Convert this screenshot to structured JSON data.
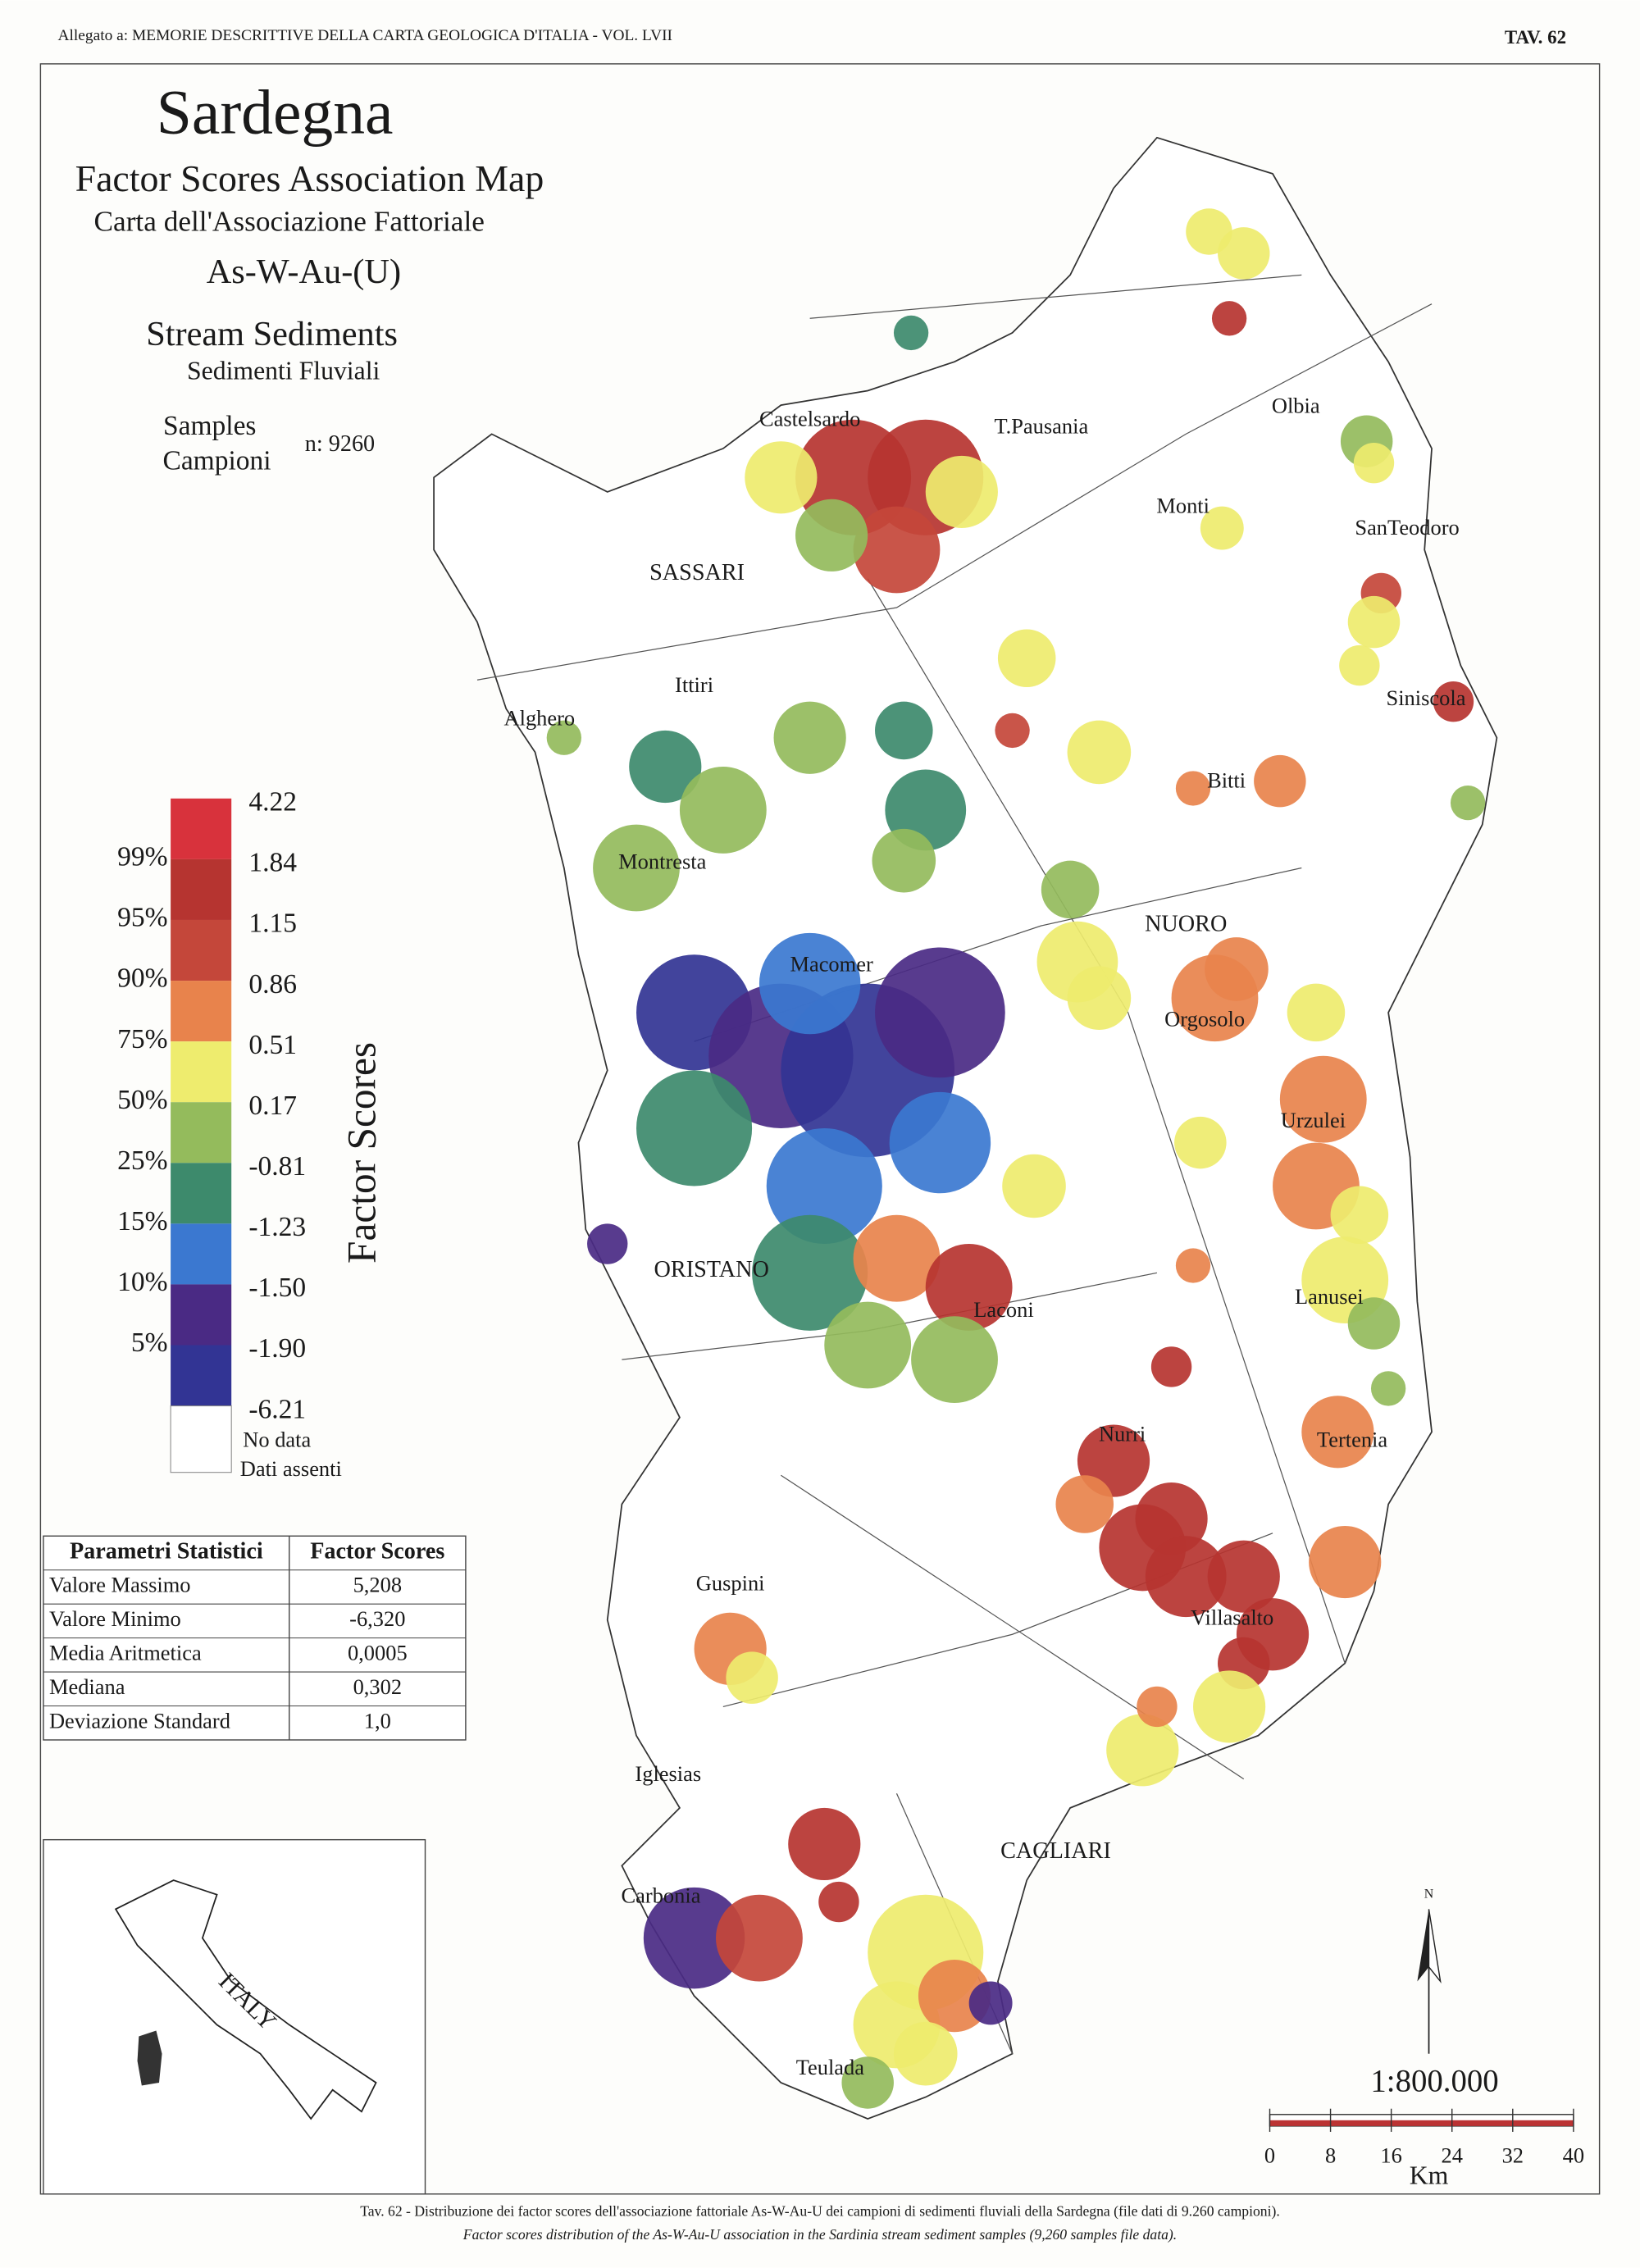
{
  "header": {
    "left": "Allegato a: MEMORIE DESCRITTIVE DELLA CARTA GEOLOGICA D'ITALIA - VOL. LVII",
    "right": "TAV. 62"
  },
  "title": {
    "main": "Sardegna",
    "subtitle_en": "Factor Scores Association Map",
    "subtitle_it": "Carta dell'Associazione Fattoriale",
    "association": "As-W-Au-(U)",
    "media_en": "Stream Sediments",
    "media_it": "Sedimenti Fluviali",
    "samples_en": "Samples",
    "samples_it": "Campioni",
    "samples_n": "n: 9260"
  },
  "legend": {
    "title": "Factor Scores",
    "colors": [
      "#d8323c",
      "#b63430",
      "#c4473a",
      "#e8834c",
      "#eeec6e",
      "#94bb5c",
      "#3d8a6c",
      "#3b78d0",
      "#4a2a84",
      "#323494"
    ],
    "values": [
      "4.22",
      "1.84",
      "1.15",
      "0.86",
      "0.51",
      "0.17",
      "-0.81",
      "-1.23",
      "-1.50",
      "-1.90",
      "-6.21"
    ],
    "percentiles": [
      "99%",
      "95%",
      "90%",
      "75%",
      "50%",
      "25%",
      "15%",
      "10%",
      "5%"
    ],
    "no_data_en": "No data",
    "no_data_it": "Dati assenti"
  },
  "table": {
    "header": [
      "Parametri Statistici",
      "Factor Scores"
    ],
    "rows": [
      [
        "Valore Massimo",
        "5,208"
      ],
      [
        "Valore Minimo",
        "-6,320"
      ],
      [
        "Media Aritmetica",
        "0,0005"
      ],
      [
        "Mediana",
        "0,302"
      ],
      [
        "Deviazione Standard",
        "1,0"
      ]
    ]
  },
  "places": [
    "Castelsardo",
    "T.Pausania",
    "Olbia",
    "Monti",
    "SanTeodoro",
    "SASSARI",
    "Ittiri",
    "Alghero",
    "Siniscola",
    "Bitti",
    "Montresta",
    "NUORO",
    "Macomer",
    "Orgosolo",
    "Urzulei",
    "ORISTANO",
    "Laconi",
    "Lanusei",
    "Nurri",
    "Tertenia",
    "Villasalto",
    "Guspini",
    "Iglesias",
    "CAGLIARI",
    "Carbonia",
    "Teulada"
  ],
  "inset": {
    "label": "ITALY"
  },
  "scale": {
    "ratio": "1:800.000",
    "ticks": [
      "0",
      "8",
      "16",
      "24",
      "32",
      "40"
    ],
    "unit": "Km",
    "north": "N"
  },
  "caption": [
    "Tav. 62 - Distribuzione dei factor scores dell'associazione fattoriale As-W-Au-U dei campioni di sedimenti fluviali della Sardegna (file dati di 9.260 campioni).",
    "Factor scores distribution of the As-W-Au-U association in the Sardinia stream sediment samples (9,260 samples file data)."
  ]
}
